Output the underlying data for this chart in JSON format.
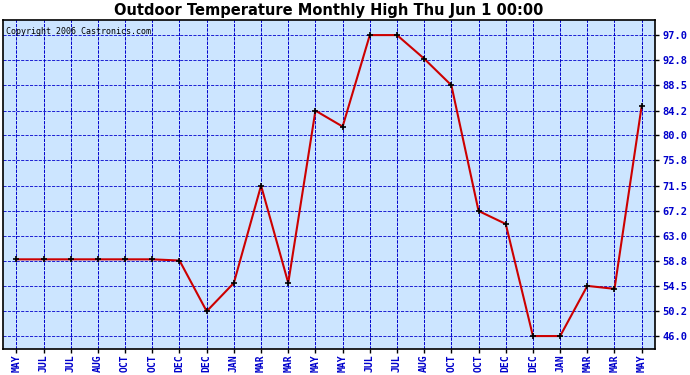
{
  "title": "Outdoor Temperature Monthly High Thu Jun 1 00:00",
  "copyright": "Copyright 2006 Castronics.com",
  "x_labels": [
    "MAY",
    "JUL",
    "JUL",
    "AUG",
    "OCT",
    "OCT",
    "DEC",
    "DEC",
    "JAN",
    "MAR",
    "MAR",
    "MAY",
    "MAY",
    "JUL",
    "JUL",
    "AUG",
    "OCT",
    "OCT",
    "DEC",
    "DEC",
    "JAN",
    "MAR",
    "MAR",
    "MAY"
  ],
  "y_values": [
    59.0,
    59.0,
    59.0,
    59.0,
    59.0,
    59.0,
    58.8,
    50.2,
    55.0,
    71.5,
    55.0,
    84.2,
    81.5,
    97.0,
    97.0,
    93.0,
    88.5,
    67.2,
    65.0,
    46.0,
    46.0,
    54.5,
    54.0,
    85.0
  ],
  "y_ticks": [
    46.0,
    50.2,
    54.5,
    58.8,
    63.0,
    67.2,
    71.5,
    75.8,
    80.0,
    84.2,
    88.5,
    92.8,
    97.0
  ],
  "line_color": "#cc0000",
  "marker_color": "#000000",
  "bg_color": "#ffffff",
  "plot_bg": "#cce5ff",
  "grid_color": "#0000cc",
  "border_color": "#000000",
  "title_color": "#000000",
  "copyright_color": "#000000",
  "tick_label_color": "#0000cc"
}
